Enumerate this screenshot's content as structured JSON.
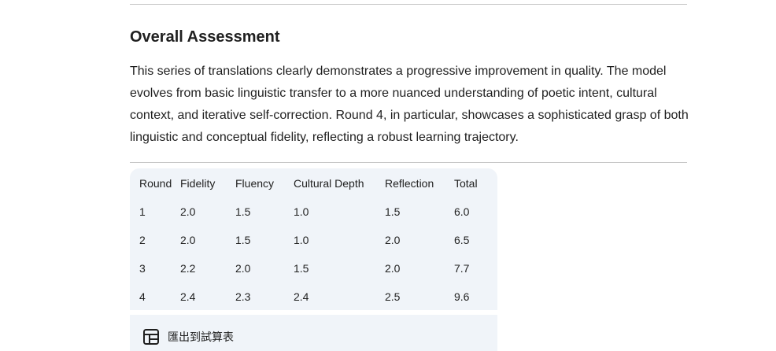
{
  "section": {
    "heading": "Overall Assessment",
    "paragraph": "This series of translations clearly demonstrates a progressive improvement in quality. The model evolves from basic linguistic transfer to a more nuanced understanding of poetic intent, cultural context, and iterative self-correction. Round 4, in particular, showcases a sophisticated grasp of both linguistic and conceptual fidelity, reflecting a robust learning trajectory."
  },
  "table": {
    "headers": [
      "Round",
      "Fidelity",
      "Fluency",
      "Cultural Depth",
      "Reflection",
      "Total"
    ],
    "rows": [
      [
        "1",
        "2.0",
        "1.5",
        "1.0",
        "1.5",
        "6.0"
      ],
      [
        "2",
        "2.0",
        "1.5",
        "1.0",
        "2.0",
        "6.5"
      ],
      [
        "3",
        "2.2",
        "2.0",
        "1.5",
        "2.0",
        "7.7"
      ],
      [
        "4",
        "2.4",
        "2.3",
        "2.4",
        "2.5",
        "9.6"
      ]
    ]
  },
  "export": {
    "label": "匯出到試算表",
    "icon": "table-grid-icon"
  },
  "colors": {
    "text": "#1f1f1f",
    "divider": "#c7c7c7",
    "table_bg": "#f0f4f9"
  }
}
